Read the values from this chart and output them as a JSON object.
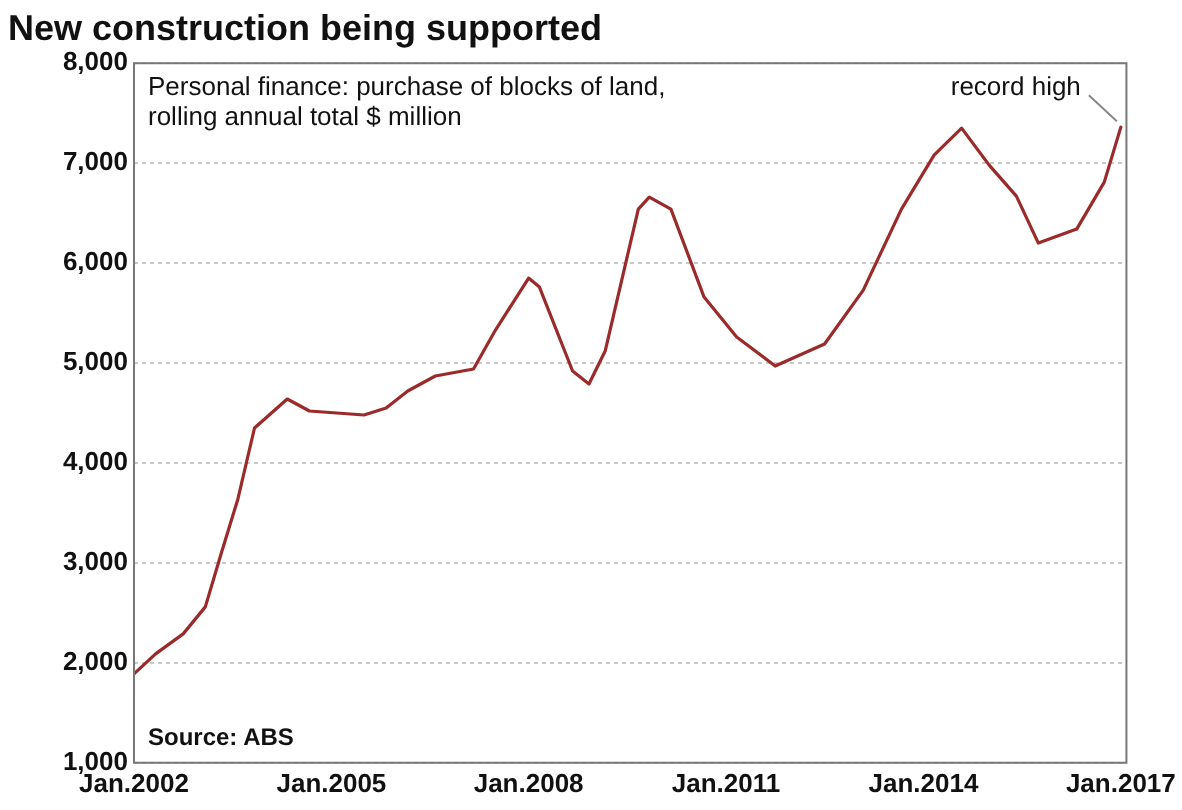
{
  "chart_data": {
    "type": "line",
    "title": "New construction being supported",
    "subtitle": "Personal finance: purchase of blocks of land,\nrolling annual total $ million",
    "x": [
      "2002-01",
      "2002-05",
      "2002-10",
      "2003-02",
      "2003-05",
      "2003-08",
      "2003-11",
      "2004-05",
      "2004-09",
      "2005-07",
      "2005-11",
      "2006-03",
      "2006-08",
      "2007-03",
      "2007-07",
      "2008-01",
      "2008-03",
      "2008-09",
      "2008-12",
      "2009-03",
      "2009-09",
      "2009-11",
      "2010-03",
      "2010-09",
      "2011-03",
      "2011-10",
      "2012-07",
      "2013-02",
      "2013-09",
      "2014-03",
      "2014-08",
      "2015-01",
      "2015-06",
      "2015-10",
      "2016-05",
      "2016-10",
      "2017-01"
    ],
    "series": [
      {
        "color": "#9b2a2a",
        "values": [
          1890,
          2090,
          2290,
          2560,
          3100,
          3640,
          4350,
          4640,
          4520,
          4480,
          4550,
          4720,
          4870,
          4940,
          5330,
          5850,
          5760,
          4920,
          4790,
          5120,
          6540,
          6660,
          6540,
          5660,
          5260,
          4970,
          5190,
          5730,
          6540,
          7080,
          7350,
          6980,
          6670,
          6200,
          6340,
          6810,
          7360
        ]
      }
    ],
    "xlim": [
      "2002-01",
      "2017-02"
    ],
    "xticks": [
      {
        "value": "2002-01",
        "label": "Jan.2002"
      },
      {
        "value": "2005-01",
        "label": "Jan.2005"
      },
      {
        "value": "2008-01",
        "label": "Jan.2008"
      },
      {
        "value": "2011-01",
        "label": "Jan.2011"
      },
      {
        "value": "2014-01",
        "label": "Jan.2014"
      },
      {
        "value": "2017-01",
        "label": "Jan.2017"
      }
    ],
    "ylim": [
      1000,
      8000
    ],
    "yticks": [
      {
        "value": 1000,
        "label": "1,000"
      },
      {
        "value": 2000,
        "label": "2,000"
      },
      {
        "value": 3000,
        "label": "3,000"
      },
      {
        "value": 4000,
        "label": "4,000"
      },
      {
        "value": 5000,
        "label": "5,000"
      },
      {
        "value": 6000,
        "label": "6,000"
      },
      {
        "value": 7000,
        "label": "7,000"
      },
      {
        "value": 8000,
        "label": "8,000"
      }
    ],
    "grid": "y",
    "legend": false,
    "marker": "none",
    "line_style": "solid",
    "annotations": [
      {
        "text": "record high",
        "x": "2017-01",
        "y": 7360
      },
      "Source: ABS"
    ]
  }
}
